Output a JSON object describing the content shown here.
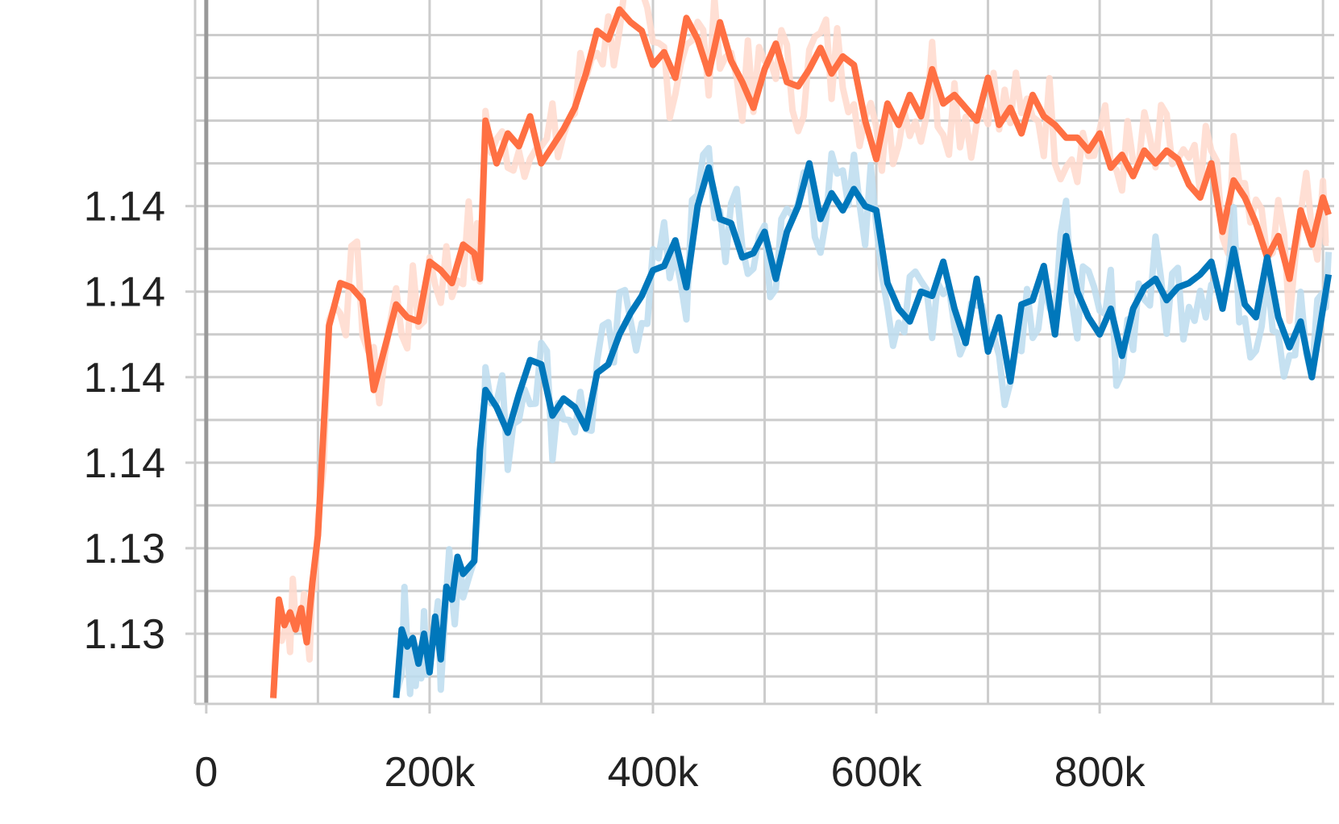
{
  "chart_data": {
    "type": "line",
    "title": "",
    "xlabel": "",
    "ylabel": "",
    "xlim": [
      -10000,
      1010000
    ],
    "ylim": [
      1.12786,
      1.14432
    ],
    "grid": true,
    "x_tick_values": [
      0,
      200000,
      400000,
      600000,
      800000
    ],
    "x_tick_labels": [
      "0",
      "200k",
      "400k",
      "600k",
      "800k"
    ],
    "y_tick_values": [
      1.1295,
      1.1315,
      1.1335,
      1.1355,
      1.1375,
      1.1395
    ],
    "y_tick_labels": [
      "1.13",
      "1.13",
      "1.14",
      "1.14",
      "1.14",
      "1.14"
    ],
    "colors": {
      "orange": "#ff7043",
      "orange_raw": "#ffd9cc",
      "blue": "#0077bb",
      "blue_raw": "#bcdcee",
      "grid": "#cccccc",
      "axis": "#999999"
    },
    "series": [
      {
        "color_key": "orange",
        "x": [
          60000,
          65000,
          70000,
          75000,
          80000,
          85000,
          90000,
          95000,
          100000,
          110000,
          120000,
          130000,
          140000,
          150000,
          160000,
          170000,
          180000,
          190000,
          200000,
          210000,
          220000,
          230000,
          240000,
          245000,
          250000,
          260000,
          270000,
          280000,
          290000,
          300000,
          310000,
          320000,
          330000,
          340000,
          350000,
          360000,
          370000,
          380000,
          390000,
          400000,
          410000,
          420000,
          430000,
          440000,
          450000,
          460000,
          470000,
          480000,
          490000,
          500000,
          510000,
          520000,
          530000,
          540000,
          550000,
          560000,
          570000,
          580000,
          590000,
          600000,
          610000,
          620000,
          630000,
          640000,
          650000,
          660000,
          670000,
          680000,
          690000,
          700000,
          710000,
          720000,
          730000,
          740000,
          750000,
          760000,
          770000,
          780000,
          790000,
          800000,
          810000,
          820000,
          830000,
          840000,
          850000,
          860000,
          870000,
          880000,
          890000,
          900000,
          910000,
          920000,
          930000,
          940000,
          950000,
          960000,
          970000,
          980000,
          990000,
          1000000,
          1005000
        ],
        "y": [
          1.128,
          1.1303,
          1.1297,
          1.13,
          1.1296,
          1.1301,
          1.1293,
          1.1307,
          1.1318,
          1.1367,
          1.1377,
          1.1376,
          1.1373,
          1.1352,
          1.1362,
          1.1372,
          1.1369,
          1.1368,
          1.1382,
          1.138,
          1.1377,
          1.1386,
          1.1384,
          1.1378,
          1.1415,
          1.1405,
          1.1412,
          1.1409,
          1.1416,
          1.1405,
          1.1409,
          1.1413,
          1.1418,
          1.1426,
          1.1436,
          1.1434,
          1.1441,
          1.1438,
          1.1436,
          1.1428,
          1.1431,
          1.1425,
          1.1439,
          1.1434,
          1.1426,
          1.1438,
          1.1429,
          1.1424,
          1.1418,
          1.1427,
          1.1433,
          1.1424,
          1.1423,
          1.1427,
          1.1432,
          1.1426,
          1.143,
          1.1428,
          1.1415,
          1.1406,
          1.1419,
          1.1414,
          1.1421,
          1.1416,
          1.1427,
          1.1419,
          1.1421,
          1.1418,
          1.1415,
          1.1425,
          1.1414,
          1.1418,
          1.1412,
          1.1421,
          1.1416,
          1.1414,
          1.1411,
          1.1411,
          1.1408,
          1.1412,
          1.1404,
          1.1407,
          1.1402,
          1.1408,
          1.1405,
          1.1408,
          1.1406,
          1.14,
          1.1397,
          1.1405,
          1.1389,
          1.1401,
          1.1397,
          1.1391,
          1.1383,
          1.1388,
          1.1378,
          1.1394,
          1.1386,
          1.1397,
          1.1393
        ]
      },
      {
        "color_key": "blue",
        "x": [
          170000,
          175000,
          180000,
          185000,
          190000,
          195000,
          200000,
          205000,
          210000,
          215000,
          220000,
          225000,
          230000,
          240000,
          245000,
          250000,
          260000,
          270000,
          280000,
          290000,
          300000,
          310000,
          320000,
          330000,
          340000,
          350000,
          360000,
          370000,
          380000,
          390000,
          400000,
          410000,
          420000,
          430000,
          440000,
          450000,
          460000,
          470000,
          480000,
          490000,
          500000,
          510000,
          520000,
          530000,
          540000,
          550000,
          560000,
          570000,
          580000,
          590000,
          600000,
          610000,
          620000,
          630000,
          640000,
          650000,
          660000,
          670000,
          680000,
          690000,
          700000,
          710000,
          720000,
          730000,
          740000,
          750000,
          760000,
          770000,
          780000,
          790000,
          800000,
          810000,
          820000,
          830000,
          840000,
          850000,
          860000,
          870000,
          880000,
          890000,
          900000,
          910000,
          920000,
          930000,
          940000,
          950000,
          960000,
          970000,
          980000,
          990000,
          1000000,
          1005000
        ],
        "y": [
          1.128,
          1.1296,
          1.1292,
          1.1294,
          1.1288,
          1.1295,
          1.1286,
          1.1299,
          1.1289,
          1.1306,
          1.1303,
          1.1313,
          1.1309,
          1.1312,
          1.1338,
          1.1352,
          1.1348,
          1.1342,
          1.1351,
          1.1359,
          1.1358,
          1.1346,
          1.135,
          1.1348,
          1.1343,
          1.1356,
          1.1358,
          1.1365,
          1.137,
          1.1374,
          1.138,
          1.1381,
          1.1387,
          1.1376,
          1.1395,
          1.1404,
          1.1392,
          1.1391,
          1.1383,
          1.1384,
          1.1389,
          1.1378,
          1.1389,
          1.1395,
          1.1405,
          1.1392,
          1.1398,
          1.1394,
          1.1399,
          1.1395,
          1.1394,
          1.1377,
          1.1371,
          1.1368,
          1.1375,
          1.1374,
          1.1382,
          1.1371,
          1.1363,
          1.1378,
          1.1361,
          1.1369,
          1.1354,
          1.1372,
          1.1373,
          1.1381,
          1.1365,
          1.1388,
          1.1375,
          1.1369,
          1.1365,
          1.1371,
          1.136,
          1.1371,
          1.1376,
          1.1378,
          1.1373,
          1.1376,
          1.1377,
          1.1379,
          1.1382,
          1.1371,
          1.1385,
          1.1372,
          1.1369,
          1.1383,
          1.1369,
          1.1362,
          1.1368,
          1.1355,
          1.1371,
          1.1379
        ]
      }
    ]
  }
}
